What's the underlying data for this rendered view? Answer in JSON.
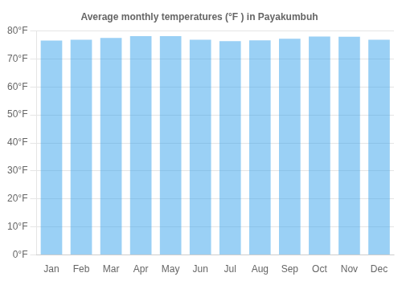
{
  "chart_data": {
    "type": "bar",
    "title": "Average monthly temperatures (°F ) in Payakumbuh",
    "categories": [
      "Jan",
      "Feb",
      "Mar",
      "Apr",
      "May",
      "Jun",
      "Jul",
      "Aug",
      "Sep",
      "Oct",
      "Nov",
      "Dec"
    ],
    "values": [
      76.5,
      76.8,
      77.5,
      78.1,
      78.1,
      76.8,
      76.3,
      76.6,
      77.2,
      78.0,
      77.9,
      76.8
    ],
    "ylim": [
      0,
      80
    ],
    "yticks": [
      {
        "value": 0,
        "label": "0°F"
      },
      {
        "value": 10,
        "label": "10°F"
      },
      {
        "value": 20,
        "label": "20°F"
      },
      {
        "value": 30,
        "label": "30°F"
      },
      {
        "value": 40,
        "label": "40°F"
      },
      {
        "value": 50,
        "label": "50°F"
      },
      {
        "value": 60,
        "label": "60°F"
      },
      {
        "value": 70,
        "label": "70°F"
      },
      {
        "value": 80,
        "label": "80°F"
      }
    ],
    "grid": true
  }
}
